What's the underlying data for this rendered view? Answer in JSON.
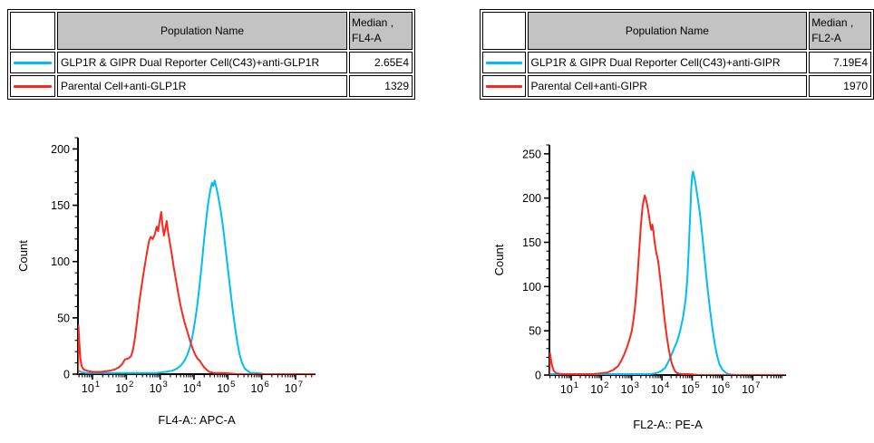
{
  "page": {
    "background": "#ffffff"
  },
  "colors": {
    "cyan_series": "#00bdf6",
    "red_series": "#f8281e",
    "table_header_gray": "#c3c3c3",
    "axis_black": "#000000"
  },
  "panels": [
    {
      "table": {
        "population_header": "Population Name",
        "median_header_line1": "Median ,",
        "median_header_line2": "FL4-A",
        "rows": [
          {
            "swatch_color": "#00bdf6",
            "name": "GLP1R & GIPR Dual Reporter Cell(C43)+anti-GLP1R",
            "median": "2.65E4"
          },
          {
            "swatch_color": "#f8281e",
            "name": "Parental Cell+anti-GLP1R",
            "median": "1329"
          }
        ]
      }
    },
    {
      "table": {
        "population_header": "Population Name",
        "median_header_line1": "Median ,",
        "median_header_line2": "FL2-A",
        "rows": [
          {
            "swatch_color": "#00bdf6",
            "name": "GLP1R & GIPR Dual Reporter Cell(C43)+anti-GIPR",
            "median": "7.19E4"
          },
          {
            "swatch_color": "#f8281e",
            "name": "Parental Cell+anti-GIPR",
            "median": "1970"
          }
        ]
      }
    }
  ],
  "chart_data": [
    {
      "type": "line",
      "subtype": "flow-cytometry-histogram",
      "title": "",
      "xlabel": "FL4-A:: APC-A",
      "ylabel": "Count",
      "x_scale": "log10",
      "x_tick_base": "10",
      "x_ticks_exponents": [
        1,
        2,
        3,
        4,
        5,
        6,
        7
      ],
      "xlim_log10": [
        0.571,
        7.59
      ],
      "ylim": [
        0,
        210
      ],
      "y_major_ticks": [
        0,
        50,
        100,
        150,
        200
      ],
      "y_minor_step": 10,
      "grid": false,
      "legend_position": "table-above",
      "series": [
        {
          "name": "GLP1R & GIPR Dual Reporter Cell(C43)+anti-GLP1R",
          "color": "#00bdf6",
          "median_stat": "2.65E4",
          "points_log10x_count": [
            [
              0.571,
              2
            ],
            [
              0.6,
              3
            ],
            [
              0.66,
              2
            ],
            [
              0.8,
              1
            ],
            [
              1.2,
              1
            ],
            [
              1.8,
              1
            ],
            [
              2.4,
              1
            ],
            [
              2.9,
              1
            ],
            [
              3.15,
              2
            ],
            [
              3.35,
              3
            ],
            [
              3.5,
              5
            ],
            [
              3.62,
              8
            ],
            [
              3.72,
              12
            ],
            [
              3.8,
              17
            ],
            [
              3.88,
              24
            ],
            [
              3.95,
              33
            ],
            [
              4.02,
              45
            ],
            [
              4.09,
              60
            ],
            [
              4.16,
              78
            ],
            [
              4.23,
              98
            ],
            [
              4.3,
              120
            ],
            [
              4.37,
              140
            ],
            [
              4.43,
              154
            ],
            [
              4.48,
              163
            ],
            [
              4.53,
              170
            ],
            [
              4.57,
              167
            ],
            [
              4.61,
              172
            ],
            [
              4.66,
              166
            ],
            [
              4.72,
              157
            ],
            [
              4.79,
              145
            ],
            [
              4.86,
              130
            ],
            [
              4.93,
              112
            ],
            [
              5.0,
              94
            ],
            [
              5.07,
              76
            ],
            [
              5.14,
              58
            ],
            [
              5.21,
              42
            ],
            [
              5.28,
              28
            ],
            [
              5.35,
              17
            ],
            [
              5.42,
              10
            ],
            [
              5.5,
              5
            ],
            [
              5.58,
              3
            ],
            [
              5.68,
              1
            ],
            [
              5.85,
              1
            ],
            [
              6.1,
              0
            ],
            [
              7.59,
              0
            ]
          ]
        },
        {
          "name": "Parental Cell+anti-GLP1R",
          "color": "#f8281e",
          "median_stat": "1329",
          "points_log10x_count": [
            [
              0.571,
              0
            ],
            [
              0.585,
              43
            ],
            [
              0.61,
              28
            ],
            [
              0.64,
              14
            ],
            [
              0.68,
              7
            ],
            [
              0.74,
              4
            ],
            [
              0.85,
              3
            ],
            [
              1.0,
              2
            ],
            [
              1.25,
              2
            ],
            [
              1.5,
              3
            ],
            [
              1.65,
              4
            ],
            [
              1.78,
              6
            ],
            [
              1.88,
              9
            ],
            [
              1.96,
              13
            ],
            [
              2.06,
              14
            ],
            [
              2.14,
              16
            ],
            [
              2.2,
              22
            ],
            [
              2.26,
              33
            ],
            [
              2.32,
              48
            ],
            [
              2.38,
              63
            ],
            [
              2.44,
              76
            ],
            [
              2.5,
              88
            ],
            [
              2.56,
              99
            ],
            [
              2.62,
              110
            ],
            [
              2.67,
              118
            ],
            [
              2.72,
              122
            ],
            [
              2.78,
              120
            ],
            [
              2.84,
              124
            ],
            [
              2.9,
              131
            ],
            [
              2.94,
              127
            ],
            [
              2.99,
              137
            ],
            [
              3.03,
              144
            ],
            [
              3.07,
              132
            ],
            [
              3.11,
              123
            ],
            [
              3.15,
              129
            ],
            [
              3.19,
              136
            ],
            [
              3.23,
              127
            ],
            [
              3.28,
              118
            ],
            [
              3.34,
              107
            ],
            [
              3.4,
              95
            ],
            [
              3.47,
              83
            ],
            [
              3.54,
              71
            ],
            [
              3.6,
              61
            ],
            [
              3.67,
              52
            ],
            [
              3.73,
              45
            ],
            [
              3.79,
              39
            ],
            [
              3.85,
              33
            ],
            [
              3.91,
              27
            ],
            [
              3.97,
              22
            ],
            [
              4.04,
              17
            ],
            [
              4.1,
              14
            ],
            [
              4.17,
              12
            ],
            [
              4.23,
              9
            ],
            [
              4.3,
              6
            ],
            [
              4.37,
              4
            ],
            [
              4.45,
              2
            ],
            [
              4.6,
              1
            ],
            [
              4.9,
              1
            ],
            [
              5.3,
              0
            ],
            [
              7.59,
              0
            ]
          ]
        }
      ]
    },
    {
      "type": "line",
      "subtype": "flow-cytometry-histogram",
      "title": "",
      "xlabel": "FL2-A:: PE-A",
      "ylabel": "Count",
      "x_scale": "log10",
      "x_tick_base": "10",
      "x_ticks_exponents": [
        1,
        2,
        3,
        4,
        5,
        6,
        7
      ],
      "xlim_log10": [
        0.281,
        8.1
      ],
      "ylim": [
        0,
        260
      ],
      "y_major_ticks": [
        0,
        50,
        100,
        150,
        200,
        250
      ],
      "y_minor_step": 10,
      "grid": false,
      "legend_position": "table-above",
      "series": [
        {
          "name": "GLP1R & GIPR Dual Reporter Cell(C43)+anti-GIPR",
          "color": "#00bdf6",
          "median_stat": "7.19E4",
          "points_log10x_count": [
            [
              0.281,
              1
            ],
            [
              0.5,
              1
            ],
            [
              1.0,
              1
            ],
            [
              1.6,
              1
            ],
            [
              2.2,
              1
            ],
            [
              2.8,
              1
            ],
            [
              3.3,
              1
            ],
            [
              3.6,
              1
            ],
            [
              3.8,
              2
            ],
            [
              3.95,
              4
            ],
            [
              4.1,
              8
            ],
            [
              4.2,
              14
            ],
            [
              4.3,
              22
            ],
            [
              4.4,
              30
            ],
            [
              4.5,
              38
            ],
            [
              4.6,
              50
            ],
            [
              4.7,
              66
            ],
            [
              4.78,
              85
            ],
            [
              4.84,
              110
            ],
            [
              4.89,
              145
            ],
            [
              4.93,
              180
            ],
            [
              4.97,
              212
            ],
            [
              5.0,
              226
            ],
            [
              5.03,
              230
            ],
            [
              5.06,
              225
            ],
            [
              5.1,
              218
            ],
            [
              5.15,
              207
            ],
            [
              5.2,
              196
            ],
            [
              5.27,
              178
            ],
            [
              5.34,
              155
            ],
            [
              5.42,
              128
            ],
            [
              5.5,
              100
            ],
            [
              5.58,
              76
            ],
            [
              5.66,
              54
            ],
            [
              5.74,
              36
            ],
            [
              5.82,
              22
            ],
            [
              5.9,
              12
            ],
            [
              6.0,
              6
            ],
            [
              6.1,
              3
            ],
            [
              6.2,
              1
            ],
            [
              6.45,
              0
            ],
            [
              8.1,
              0
            ]
          ]
        },
        {
          "name": "Parental Cell+anti-GIPR",
          "color": "#f8281e",
          "median_stat": "1970",
          "points_log10x_count": [
            [
              0.281,
              0
            ],
            [
              0.3,
              25
            ],
            [
              0.36,
              12
            ],
            [
              0.42,
              5
            ],
            [
              0.5,
              2
            ],
            [
              0.7,
              1
            ],
            [
              1.0,
              1
            ],
            [
              1.4,
              1
            ],
            [
              1.7,
              1
            ],
            [
              2.0,
              2
            ],
            [
              2.2,
              3
            ],
            [
              2.4,
              6
            ],
            [
              2.55,
              10
            ],
            [
              2.65,
              16
            ],
            [
              2.75,
              23
            ],
            [
              2.85,
              32
            ],
            [
              2.95,
              43
            ],
            [
              3.0,
              50
            ],
            [
              3.05,
              60
            ],
            [
              3.1,
              74
            ],
            [
              3.15,
              92
            ],
            [
              3.2,
              115
            ],
            [
              3.25,
              142
            ],
            [
              3.3,
              168
            ],
            [
              3.33,
              180
            ],
            [
              3.36,
              191
            ],
            [
              3.4,
              198
            ],
            [
              3.43,
              203
            ],
            [
              3.47,
              199
            ],
            [
              3.5,
              194
            ],
            [
              3.54,
              187
            ],
            [
              3.58,
              178
            ],
            [
              3.62,
              168
            ],
            [
              3.65,
              164
            ],
            [
              3.68,
              170
            ],
            [
              3.72,
              162
            ],
            [
              3.75,
              152
            ],
            [
              3.79,
              143
            ],
            [
              3.82,
              137
            ],
            [
              3.86,
              131
            ],
            [
              3.9,
              122
            ],
            [
              3.94,
              110
            ],
            [
              3.98,
              97
            ],
            [
              4.02,
              84
            ],
            [
              4.07,
              68
            ],
            [
              4.12,
              54
            ],
            [
              4.17,
              41
            ],
            [
              4.22,
              30
            ],
            [
              4.27,
              21
            ],
            [
              4.32,
              14
            ],
            [
              4.38,
              8
            ],
            [
              4.44,
              4
            ],
            [
              4.5,
              2
            ],
            [
              4.65,
              1
            ],
            [
              4.9,
              1
            ],
            [
              5.2,
              0
            ],
            [
              8.1,
              0
            ]
          ]
        }
      ]
    }
  ]
}
